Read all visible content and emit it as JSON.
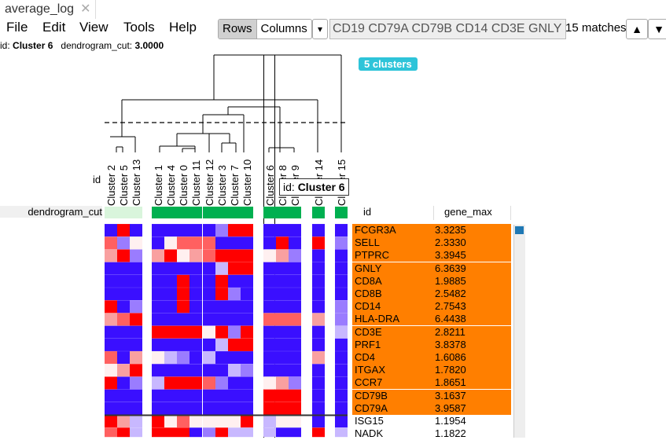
{
  "tab": {
    "title": "average_log",
    "close": "✕"
  },
  "menu": [
    "File",
    "Edit",
    "View",
    "Tools",
    "Help"
  ],
  "toolbar": {
    "rows_label": "Rows",
    "columns_label": "Columns",
    "dropdown": "▾",
    "search_value": "CD19 CD79A CD79B CD14 CD3E GNLY",
    "matches": "15 matches",
    "up": "▲",
    "down": "▼"
  },
  "info": {
    "id_label": "id:",
    "id_value": "Cluster 6",
    "cut_label": "dendrogram_cut:",
    "cut_value": "3.0000"
  },
  "badge": "5 clusters",
  "heatmap": {
    "row_label_id": "id",
    "column_annotation_label": "dendrogram_cut",
    "columns": [
      "Cluster 2",
      "Cluster 5",
      "Cluster 13",
      "Cluster 1",
      "Cluster 4",
      "Cluster 0",
      "Cluster 11",
      "Cluster 12",
      "Cluster 3",
      "Cluster 7",
      "Cluster 10",
      "Cluster 6",
      "Cluster 8",
      "Cluster 9",
      "Cluster 14",
      "Cluster 15"
    ],
    "tooltip": {
      "label": "id:",
      "value": "Cluster 6"
    },
    "colors": {
      "annotation_green": "#00b050",
      "annotation_light": "#d9f5dc",
      "highlight": "#ff7f00",
      "scroll_thumb": "#1f78b4"
    }
  },
  "table": {
    "headers": [
      "id",
      "gene_max"
    ],
    "rows": [
      {
        "id": "FCGR3A",
        "value": "3.3235",
        "highlighted": true
      },
      {
        "id": "SELL",
        "value": "2.3330",
        "highlighted": true
      },
      {
        "id": "PTPRC",
        "value": "3.3945",
        "highlighted": true
      },
      {
        "id": "GNLY",
        "value": "6.3639",
        "highlighted": true
      },
      {
        "id": "CD8A",
        "value": "1.9885",
        "highlighted": true
      },
      {
        "id": "CD8B",
        "value": "2.5482",
        "highlighted": true
      },
      {
        "id": "CD14",
        "value": "2.7543",
        "highlighted": true
      },
      {
        "id": "HLA-DRA",
        "value": "6.4438",
        "highlighted": true
      },
      {
        "id": "CD3E",
        "value": "2.8211",
        "highlighted": true
      },
      {
        "id": "PRF1",
        "value": "3.8378",
        "highlighted": true
      },
      {
        "id": "CD4",
        "value": "1.6086",
        "highlighted": true
      },
      {
        "id": "ITGAX",
        "value": "1.7820",
        "highlighted": true
      },
      {
        "id": "CCR7",
        "value": "1.8651",
        "highlighted": true
      },
      {
        "id": "CD79B",
        "value": "3.1637",
        "highlighted": true
      },
      {
        "id": "CD79A",
        "value": "3.9587",
        "highlighted": true
      },
      {
        "id": "ISG15",
        "value": "1.1954",
        "highlighted": false
      },
      {
        "id": "NADK",
        "value": "1.1822",
        "highlighted": false
      }
    ]
  }
}
